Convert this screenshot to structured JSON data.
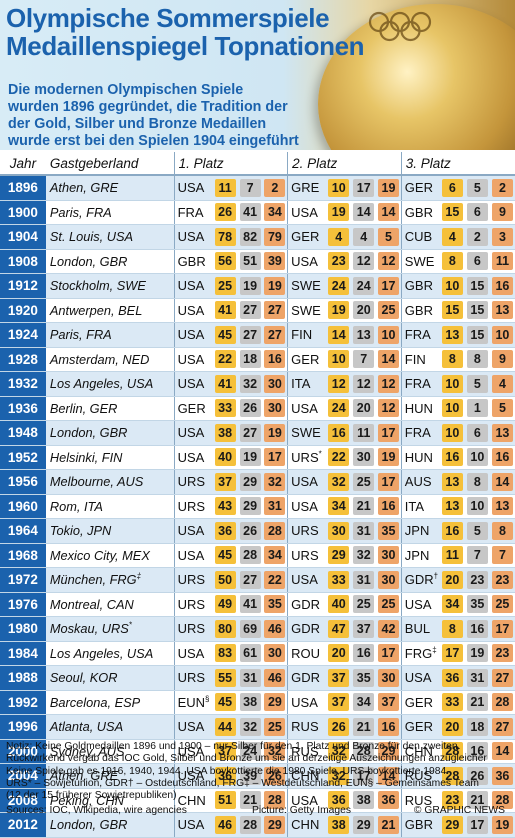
{
  "header": {
    "title_line1": "Olympische Sommerspiele",
    "title_line2": "Medaillenspiegel Topnationen",
    "intro": [
      "Die modernen Olympischen Spiele",
      "wurden 1896 gegründet, die Tradition der",
      "der Gold, Silber und Bronze Medaillen",
      "wurde erst bei den Spielen 1904 eingeführt"
    ]
  },
  "table": {
    "headers": {
      "year": "Jahr",
      "host": "Gastgeberland",
      "first": "1. Platz",
      "second": "2. Platz",
      "third": "3. Platz"
    },
    "rows": [
      {
        "year": "1896",
        "host": "Athen, GRE",
        "p1": {
          "code": "USA",
          "medals": [
            "11",
            "7",
            "2"
          ]
        },
        "p2": {
          "code": "GRE",
          "medals": [
            "10",
            "17",
            "19"
          ]
        },
        "p3": {
          "code": "GER",
          "medals": [
            "6",
            "5",
            "2"
          ]
        }
      },
      {
        "year": "1900",
        "host": "Paris, FRA",
        "p1": {
          "code": "FRA",
          "medals": [
            "26",
            "41",
            "34"
          ]
        },
        "p2": {
          "code": "USA",
          "medals": [
            "19",
            "14",
            "14"
          ]
        },
        "p3": {
          "code": "GBR",
          "medals": [
            "15",
            "6",
            "9"
          ]
        }
      },
      {
        "year": "1904",
        "host": "St. Louis, USA",
        "p1": {
          "code": "USA",
          "medals": [
            "78",
            "82",
            "79"
          ]
        },
        "p2": {
          "code": "GER",
          "medals": [
            "4",
            "4",
            "5"
          ]
        },
        "p3": {
          "code": "CUB",
          "medals": [
            "4",
            "2",
            "3"
          ]
        }
      },
      {
        "year": "1908",
        "host": "London, GBR",
        "p1": {
          "code": "GBR",
          "medals": [
            "56",
            "51",
            "39"
          ]
        },
        "p2": {
          "code": "USA",
          "medals": [
            "23",
            "12",
            "12"
          ]
        },
        "p3": {
          "code": "SWE",
          "medals": [
            "8",
            "6",
            "11"
          ]
        }
      },
      {
        "year": "1912",
        "host": "Stockholm, SWE",
        "p1": {
          "code": "USA",
          "medals": [
            "25",
            "19",
            "19"
          ]
        },
        "p2": {
          "code": "SWE",
          "medals": [
            "24",
            "24",
            "17"
          ]
        },
        "p3": {
          "code": "GBR",
          "medals": [
            "10",
            "15",
            "16"
          ]
        }
      },
      {
        "year": "1920",
        "host": "Antwerpen, BEL",
        "p1": {
          "code": "USA",
          "medals": [
            "41",
            "27",
            "27"
          ]
        },
        "p2": {
          "code": "SWE",
          "medals": [
            "19",
            "20",
            "25"
          ]
        },
        "p3": {
          "code": "GBR",
          "medals": [
            "15",
            "15",
            "13"
          ]
        }
      },
      {
        "year": "1924",
        "host": "Paris, FRA",
        "p1": {
          "code": "USA",
          "medals": [
            "45",
            "27",
            "27"
          ]
        },
        "p2": {
          "code": "FIN",
          "medals": [
            "14",
            "13",
            "10"
          ]
        },
        "p3": {
          "code": "FRA",
          "medals": [
            "13",
            "15",
            "10"
          ]
        }
      },
      {
        "year": "1928",
        "host": "Amsterdam, NED",
        "p1": {
          "code": "USA",
          "medals": [
            "22",
            "18",
            "16"
          ]
        },
        "p2": {
          "code": "GER",
          "medals": [
            "10",
            "7",
            "14"
          ]
        },
        "p3": {
          "code": "FIN",
          "medals": [
            "8",
            "8",
            "9"
          ]
        }
      },
      {
        "year": "1932",
        "host": "Los Angeles, USA",
        "p1": {
          "code": "USA",
          "medals": [
            "41",
            "32",
            "30"
          ]
        },
        "p2": {
          "code": "ITA",
          "medals": [
            "12",
            "12",
            "12"
          ]
        },
        "p3": {
          "code": "FRA",
          "medals": [
            "10",
            "5",
            "4"
          ]
        }
      },
      {
        "year": "1936",
        "host": "Berlin, GER",
        "p1": {
          "code": "GER",
          "medals": [
            "33",
            "26",
            "30"
          ]
        },
        "p2": {
          "code": "USA",
          "medals": [
            "24",
            "20",
            "12"
          ]
        },
        "p3": {
          "code": "HUN",
          "medals": [
            "10",
            "1",
            "5"
          ]
        }
      },
      {
        "year": "1948",
        "host": "London, GBR",
        "p1": {
          "code": "USA",
          "medals": [
            "38",
            "27",
            "19"
          ]
        },
        "p2": {
          "code": "SWE",
          "medals": [
            "16",
            "11",
            "17"
          ]
        },
        "p3": {
          "code": "FRA",
          "medals": [
            "10",
            "6",
            "13"
          ]
        }
      },
      {
        "year": "1952",
        "host": "Helsinki, FIN",
        "p1": {
          "code": "USA",
          "medals": [
            "40",
            "19",
            "17"
          ]
        },
        "p2": {
          "code": "URS",
          "sup": "*",
          "medals": [
            "22",
            "30",
            "19"
          ]
        },
        "p3": {
          "code": "HUN",
          "medals": [
            "16",
            "10",
            "16"
          ]
        }
      },
      {
        "year": "1956",
        "host": "Melbourne, AUS",
        "p1": {
          "code": "URS",
          "medals": [
            "37",
            "29",
            "32"
          ]
        },
        "p2": {
          "code": "USA",
          "medals": [
            "32",
            "25",
            "17"
          ]
        },
        "p3": {
          "code": "AUS",
          "medals": [
            "13",
            "8",
            "14"
          ]
        }
      },
      {
        "year": "1960",
        "host": "Rom, ITA",
        "p1": {
          "code": "URS",
          "medals": [
            "43",
            "29",
            "31"
          ]
        },
        "p2": {
          "code": "USA",
          "medals": [
            "34",
            "21",
            "16"
          ]
        },
        "p3": {
          "code": "ITA",
          "medals": [
            "13",
            "10",
            "13"
          ]
        }
      },
      {
        "year": "1964",
        "host": "Tokio, JPN",
        "p1": {
          "code": "USA",
          "medals": [
            "36",
            "26",
            "28"
          ]
        },
        "p2": {
          "code": "URS",
          "medals": [
            "30",
            "31",
            "35"
          ]
        },
        "p3": {
          "code": "JPN",
          "medals": [
            "16",
            "5",
            "8"
          ]
        }
      },
      {
        "year": "1968",
        "host": "Mexico City, MEX",
        "p1": {
          "code": "USA",
          "medals": [
            "45",
            "28",
            "34"
          ]
        },
        "p2": {
          "code": "URS",
          "medals": [
            "29",
            "32",
            "30"
          ]
        },
        "p3": {
          "code": "JPN",
          "medals": [
            "11",
            "7",
            "7"
          ]
        }
      },
      {
        "year": "1972",
        "host": "München, FRG",
        "host_sup": "‡",
        "p1": {
          "code": "URS",
          "medals": [
            "50",
            "27",
            "22"
          ]
        },
        "p2": {
          "code": "USA",
          "medals": [
            "33",
            "31",
            "30"
          ]
        },
        "p3": {
          "code": "GDR",
          "sup": "†",
          "medals": [
            "20",
            "23",
            "23"
          ]
        }
      },
      {
        "year": "1976",
        "host": "Montreal, CAN",
        "p1": {
          "code": "URS",
          "medals": [
            "49",
            "41",
            "35"
          ]
        },
        "p2": {
          "code": "GDR",
          "medals": [
            "40",
            "25",
            "25"
          ]
        },
        "p3": {
          "code": "USA",
          "medals": [
            "34",
            "35",
            "25"
          ]
        }
      },
      {
        "year": "1980",
        "host": "Moskau, URS",
        "host_sup": "*",
        "p1": {
          "code": "URS",
          "medals": [
            "80",
            "69",
            "46"
          ]
        },
        "p2": {
          "code": "GDR",
          "medals": [
            "47",
            "37",
            "42"
          ]
        },
        "p3": {
          "code": "BUL",
          "medals": [
            "8",
            "16",
            "17"
          ]
        }
      },
      {
        "year": "1984",
        "host": "Los Angeles, USA",
        "p1": {
          "code": "USA",
          "medals": [
            "83",
            "61",
            "30"
          ]
        },
        "p2": {
          "code": "ROU",
          "medals": [
            "20",
            "16",
            "17"
          ]
        },
        "p3": {
          "code": "FRG",
          "sup": "‡",
          "medals": [
            "17",
            "19",
            "23"
          ]
        }
      },
      {
        "year": "1988",
        "host": "Seoul, KOR",
        "p1": {
          "code": "URS",
          "medals": [
            "55",
            "31",
            "46"
          ]
        },
        "p2": {
          "code": "GDR",
          "medals": [
            "37",
            "35",
            "30"
          ]
        },
        "p3": {
          "code": "USA",
          "medals": [
            "36",
            "31",
            "27"
          ]
        }
      },
      {
        "year": "1992",
        "host": "Barcelona, ESP",
        "p1": {
          "code": "EUN",
          "sup": "§",
          "medals": [
            "45",
            "38",
            "29"
          ]
        },
        "p2": {
          "code": "USA",
          "medals": [
            "37",
            "34",
            "37"
          ]
        },
        "p3": {
          "code": "GER",
          "medals": [
            "33",
            "21",
            "28"
          ]
        }
      },
      {
        "year": "1996",
        "host": "Atlanta, USA",
        "p1": {
          "code": "USA",
          "medals": [
            "44",
            "32",
            "25"
          ]
        },
        "p2": {
          "code": "RUS",
          "medals": [
            "26",
            "21",
            "16"
          ]
        },
        "p3": {
          "code": "GER",
          "medals": [
            "20",
            "18",
            "27"
          ]
        }
      },
      {
        "year": "2000",
        "host": "Sydney, AUS",
        "p1": {
          "code": "USA",
          "medals": [
            "37",
            "24",
            "32"
          ]
        },
        "p2": {
          "code": "RUS",
          "medals": [
            "32",
            "28",
            "29"
          ]
        },
        "p3": {
          "code": "CHN",
          "medals": [
            "28",
            "16",
            "14"
          ]
        }
      },
      {
        "year": "2004",
        "host": "Athen, GRE",
        "p1": {
          "code": "USA",
          "medals": [
            "36",
            "39",
            "26"
          ]
        },
        "p2": {
          "code": "CHN",
          "medals": [
            "32",
            "17",
            "14"
          ]
        },
        "p3": {
          "code": "RUS",
          "medals": [
            "28",
            "26",
            "36"
          ]
        }
      },
      {
        "year": "2008",
        "host": "Peking, CHN",
        "p1": {
          "code": "CHN",
          "medals": [
            "51",
            "21",
            "28"
          ]
        },
        "p2": {
          "code": "USA",
          "medals": [
            "36",
            "38",
            "36"
          ]
        },
        "p3": {
          "code": "RUS",
          "medals": [
            "23",
            "21",
            "28"
          ]
        }
      },
      {
        "year": "2012",
        "host": "London, GBR",
        "p1": {
          "code": "USA",
          "medals": [
            "46",
            "28",
            "29"
          ]
        },
        "p2": {
          "code": "CHN",
          "medals": [
            "38",
            "29",
            "21"
          ]
        },
        "p3": {
          "code": "GBR",
          "medals": [
            "29",
            "17",
            "19"
          ]
        }
      }
    ]
  },
  "notes": {
    "line1": "Notiz: Keine Goldmedaillen 1896 und 1900 – nur Silber für den 1. Platz und Bronze für den zweiten.",
    "line2": "Rückwirkend vergab das IOC Gold, Silber und Bronze um sie an derzeitige Auszeichnungen anzugleicher",
    "line3": "Keine Spiele gab es 1916, 1940, 1944. USA boykottierte die 1980 Spiele, URS boykottierte 1984.",
    "line4_a": "URS* – Sowjetunion, GDR† – Ostdeutschland, FRG‡ – Westdeutschland, EUN§ – Gemeinsames Team",
    "line5": "(12 der 15 früherer Sowjetrepubliken)"
  },
  "sources": {
    "sources": "Sources: IOC, Wikipedia, wire agencies",
    "picture": "Picture: Getty Images",
    "copyright": "© GRAPHIC NEWS"
  },
  "colors": {
    "blue": "#1b62ad",
    "gold": "#f5c03a",
    "silver": "#c7c7c7",
    "bronze": "#eea468",
    "stripe": "#dbe9f5"
  }
}
